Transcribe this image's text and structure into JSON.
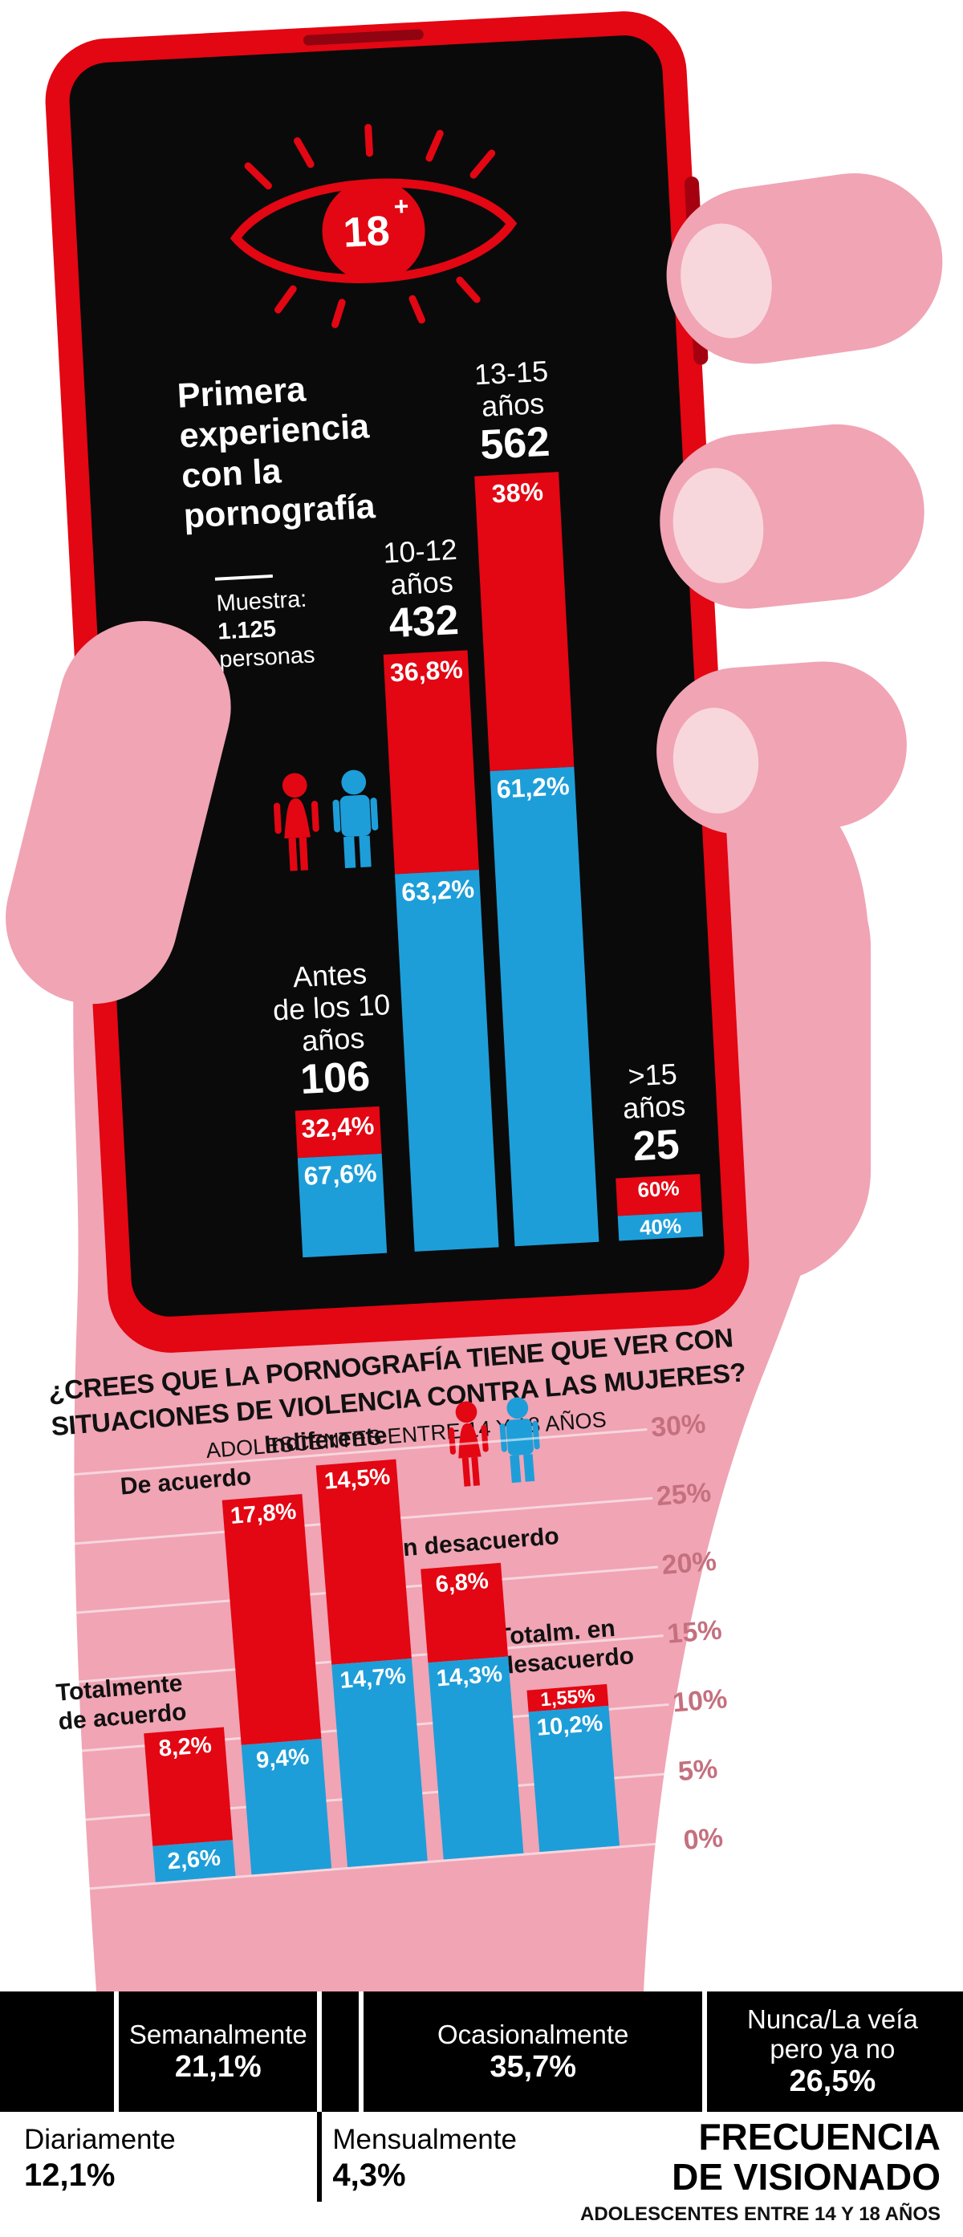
{
  "colors": {
    "red": "#e30613",
    "blue": "#1d9ed9",
    "skin_pink": "#f0a4b4",
    "nail_pink": "#f8d7dc",
    "background": "#ffffff",
    "bar_black": "#000000",
    "axis_label_pink": "#c4707f"
  },
  "phone_chart": {
    "badge_number": "18",
    "badge_plus": "+",
    "title_lines": [
      "Primera",
      "experiencia",
      "con la",
      "pornografía"
    ],
    "sample_lines": [
      "Muestra:",
      "1.125",
      "personas"
    ],
    "groups": [
      {
        "label_lines": [
          "Antes",
          "de los 10",
          "años"
        ],
        "count": "106",
        "count_value": 106,
        "red_pct": "32,4%",
        "red_value": 32.4,
        "blue_pct": "67,6%",
        "blue_value": 67.6
      },
      {
        "label_lines": [
          "10-12",
          "años"
        ],
        "count": "432",
        "count_value": 432,
        "red_pct": "36,8%",
        "red_value": 36.8,
        "blue_pct": "63,2%",
        "blue_value": 63.2
      },
      {
        "label_lines": [
          "13-15",
          "años"
        ],
        "count": "562",
        "count_value": 562,
        "red_pct": "38%",
        "red_value": 38,
        "blue_pct": "61,2%",
        "blue_value": 61.2
      },
      {
        "label_lines": [
          ">15",
          "años"
        ],
        "count": "25",
        "count_value": 25,
        "red_pct": "60%",
        "red_value": 60,
        "blue_pct": "40%",
        "blue_value": 40
      }
    ]
  },
  "survey_chart": {
    "title_lines": [
      "¿CREES QUE LA PORNOGRAFÍA TIENE QUE VER CON",
      "SITUACIONES DE VIOLENCIA CONTRA LAS MUJERES?"
    ],
    "subtitle": "ADOLESCENTES ENTRE 14 Y 18 AÑOS",
    "y_ticks": [
      "30%",
      "25%",
      "20%",
      "15%",
      "10%",
      "5%",
      "0%"
    ],
    "categories": [
      {
        "label_lines": [
          "Totalmente",
          "de acuerdo"
        ],
        "red_pct": "8,2%",
        "red_value": 8.2,
        "blue_pct": "2,6%",
        "blue_value": 2.6
      },
      {
        "label_lines": [
          "De acuerdo"
        ],
        "red_pct": "17,8%",
        "red_value": 17.8,
        "blue_pct": "9,4%",
        "blue_value": 9.4
      },
      {
        "label_lines": [
          "Indiferente"
        ],
        "red_pct": "14,5%",
        "red_value": 14.5,
        "blue_pct": "14,7%",
        "blue_value": 14.7
      },
      {
        "label_lines": [
          "En desacuerdo"
        ],
        "red_pct": "6,8%",
        "red_value": 6.8,
        "blue_pct": "14,3%",
        "blue_value": 14.3
      },
      {
        "label_lines": [
          "Totalm. en",
          "desacuerdo"
        ],
        "red_pct": "1,55%",
        "red_value": 1.55,
        "blue_pct": "10,2%",
        "blue_value": 10.2
      }
    ]
  },
  "frequency_chart": {
    "title_lines": [
      "FRECUENCIA",
      "DE VISIONADO"
    ],
    "subtitle": "ADOLESCENTES ENTRE 14 Y 18 AÑOS",
    "segments": [
      {
        "label": "Diariamente",
        "pct": "12,1%",
        "value": 12.1,
        "label_row": "bottom"
      },
      {
        "label": "Semanalmente",
        "pct": "21,1%",
        "value": 21.1,
        "label_row": "top"
      },
      {
        "label": "Mensualmente",
        "pct": "4,3%",
        "value": 4.3,
        "label_row": "bottom"
      },
      {
        "label": "Ocasionalmente",
        "pct": "35,7%",
        "value": 35.7,
        "label_row": "top"
      },
      {
        "label": "Nunca/La veía pero ya no",
        "pct": "26,5%",
        "value": 26.5,
        "label_row": "top"
      }
    ]
  },
  "chart_data": [
    {
      "type": "bar",
      "title": "Primera experiencia con la pornografía",
      "subtitle": "Muestra: 1.125 personas",
      "categories": [
        "Antes de los 10 años",
        "10-12 años",
        "13-15 años",
        ">15 años"
      ],
      "counts": [
        106,
        432,
        562,
        25
      ],
      "series": [
        {
          "name": "mujeres",
          "color": "#e30613",
          "values": [
            32.4,
            36.8,
            38,
            60
          ]
        },
        {
          "name": "hombres",
          "color": "#1d9ed9",
          "values": [
            67.6,
            63.2,
            61.2,
            40
          ]
        }
      ],
      "unit": "%",
      "note": "stacked percentage columns; column height proportional to group count"
    },
    {
      "type": "bar",
      "title": "¿Crees que la pornografía tiene que ver con situaciones de violencia contra las mujeres?",
      "subtitle": "Adolescentes entre 14 y 18 años",
      "categories": [
        "Totalmente de acuerdo",
        "De acuerdo",
        "Indiferente",
        "En desacuerdo",
        "Totalm. en desacuerdo"
      ],
      "series": [
        {
          "name": "mujeres",
          "color": "#e30613",
          "values": [
            8.2,
            17.8,
            14.5,
            6.8,
            1.55
          ]
        },
        {
          "name": "hombres",
          "color": "#1d9ed9",
          "values": [
            2.6,
            9.4,
            14.7,
            14.3,
            10.2
          ]
        }
      ],
      "ylim": [
        0,
        30
      ],
      "yticks": [
        "0%",
        "5%",
        "10%",
        "15%",
        "20%",
        "25%",
        "30%"
      ],
      "grid": true,
      "legend_position": "icons top-right"
    },
    {
      "type": "bar",
      "title": "Frecuencia de visionado",
      "subtitle": "Adolescentes entre 14 y 18 años",
      "categories": [
        "Diariamente",
        "Semanalmente",
        "Mensualmente",
        "Ocasionalmente",
        "Nunca/La veía pero ya no"
      ],
      "values": [
        12.1,
        21.1,
        4.3,
        35.7,
        26.5
      ],
      "unit": "%",
      "layout": "horizontal 100% stacked bar"
    }
  ]
}
